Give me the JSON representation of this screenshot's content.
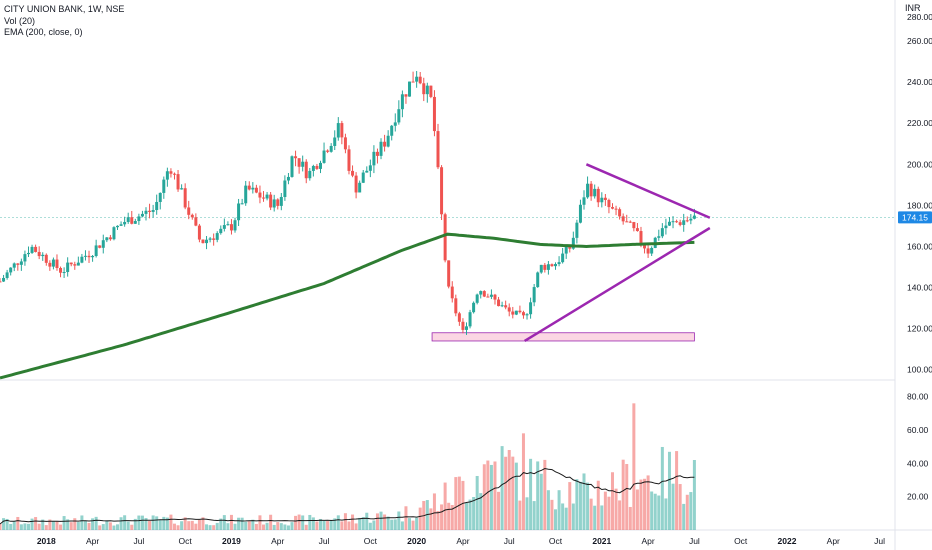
{
  "legend": {
    "symbol_line": "CITY UNION BANK, 1W, NSE",
    "vol_line": "Vol (20)",
    "ema_line": "EMA (200, close, 0)"
  },
  "currency": "INR",
  "colors": {
    "up": "#26a69a",
    "down": "#ef5350",
    "ema": "#2e7d32",
    "trendline": "#9c27b0",
    "support_zone": "#f8bbd0",
    "last_price_bg": "#1e88e5"
  },
  "chart_data": {
    "type": "candlestick",
    "title": "CITY UNION BANK, 1W, NSE",
    "price_axis": {
      "ticks": [
        "100.00",
        "120.00",
        "140.00",
        "160.00",
        "180.00",
        "200.00",
        "220.00",
        "240.00",
        "260.00"
      ],
      "top_label": "280.00",
      "range": [
        95,
        280
      ]
    },
    "volume_axis": {
      "ticks": [
        "20.00",
        "40.00",
        "60.00",
        "80.00"
      ],
      "range": [
        0,
        90
      ]
    },
    "time_axis": {
      "labels": [
        "2018",
        "Apr",
        "Jul",
        "Oct",
        "2019",
        "Apr",
        "Jul",
        "Oct",
        "2020",
        "Apr",
        "Jul",
        "Oct",
        "2021",
        "Apr",
        "Jul",
        "Oct",
        "2022",
        "Apr",
        "Jul"
      ],
      "start": "2017-10",
      "end": "2022-08"
    },
    "last_price": "174.15",
    "price_anchors": [
      {
        "t": "2017-10",
        "p": 143
      },
      {
        "t": "2017-12",
        "p": 160
      },
      {
        "t": "2018-02",
        "p": 148
      },
      {
        "t": "2018-04",
        "p": 158
      },
      {
        "t": "2018-06",
        "p": 172
      },
      {
        "t": "2018-08",
        "p": 178
      },
      {
        "t": "2018-09",
        "p": 200
      },
      {
        "t": "2018-11",
        "p": 162
      },
      {
        "t": "2019-01",
        "p": 170
      },
      {
        "t": "2019-02",
        "p": 188
      },
      {
        "t": "2019-04",
        "p": 180
      },
      {
        "t": "2019-05",
        "p": 205
      },
      {
        "t": "2019-06",
        "p": 195
      },
      {
        "t": "2019-08",
        "p": 218
      },
      {
        "t": "2019-09",
        "p": 188
      },
      {
        "t": "2019-11",
        "p": 212
      },
      {
        "t": "2019-12",
        "p": 232
      },
      {
        "t": "2020-01",
        "p": 245
      },
      {
        "t": "2020-02",
        "p": 230
      },
      {
        "t": "2020-03",
        "p": 140
      },
      {
        "t": "2020-04",
        "p": 118
      },
      {
        "t": "2020-05",
        "p": 140
      },
      {
        "t": "2020-07",
        "p": 128
      },
      {
        "t": "2020-08",
        "p": 125
      },
      {
        "t": "2020-09",
        "p": 150
      },
      {
        "t": "2020-10",
        "p": 152
      },
      {
        "t": "2020-11",
        "p": 160
      },
      {
        "t": "2020-12",
        "p": 190
      },
      {
        "t": "2021-01",
        "p": 182
      },
      {
        "t": "2021-03",
        "p": 168
      },
      {
        "t": "2021-04",
        "p": 158
      },
      {
        "t": "2021-05",
        "p": 170
      },
      {
        "t": "2021-06",
        "p": 172
      },
      {
        "t": "2021-07",
        "p": 174.15
      }
    ],
    "ema200": [
      {
        "t": "2017-10",
        "p": 96
      },
      {
        "t": "2018-06",
        "p": 112
      },
      {
        "t": "2019-01",
        "p": 128
      },
      {
        "t": "2019-07",
        "p": 142
      },
      {
        "t": "2019-12",
        "p": 158
      },
      {
        "t": "2020-03",
        "p": 166
      },
      {
        "t": "2020-06",
        "p": 164
      },
      {
        "t": "2020-09",
        "p": 161
      },
      {
        "t": "2020-12",
        "p": 160
      },
      {
        "t": "2021-03",
        "p": 161
      },
      {
        "t": "2021-07",
        "p": 162
      }
    ],
    "volume_anchors": [
      {
        "t": "2017-10",
        "v": 5
      },
      {
        "t": "2018-06",
        "v": 6
      },
      {
        "t": "2019-06",
        "v": 6
      },
      {
        "t": "2019-12",
        "v": 9
      },
      {
        "t": "2020-03",
        "v": 20
      },
      {
        "t": "2020-06",
        "v": 40
      },
      {
        "t": "2020-09",
        "v": 30
      },
      {
        "t": "2020-12",
        "v": 22
      },
      {
        "t": "2021-03",
        "v": 30
      },
      {
        "t": "2021-07",
        "v": 35
      }
    ],
    "volume_spikes": [
      {
        "t": "2020-07",
        "v": 48
      },
      {
        "t": "2020-08",
        "v": 58
      },
      {
        "t": "2021-03",
        "v": 76
      },
      {
        "t": "2021-07",
        "v": 42
      }
    ],
    "annotations": [
      {
        "kind": "trendline",
        "from": {
          "t": "2020-12",
          "p": 200
        },
        "to": {
          "t": "2021-08",
          "p": 174
        }
      },
      {
        "kind": "trendline",
        "from": {
          "t": "2020-08",
          "p": 114
        },
        "to": {
          "t": "2021-08",
          "p": 169
        }
      },
      {
        "kind": "zone",
        "t0": "2020-02",
        "t1": "2021-07",
        "p0": 114,
        "p1": 118
      }
    ],
    "grid": false,
    "legend_position": "top-left"
  }
}
